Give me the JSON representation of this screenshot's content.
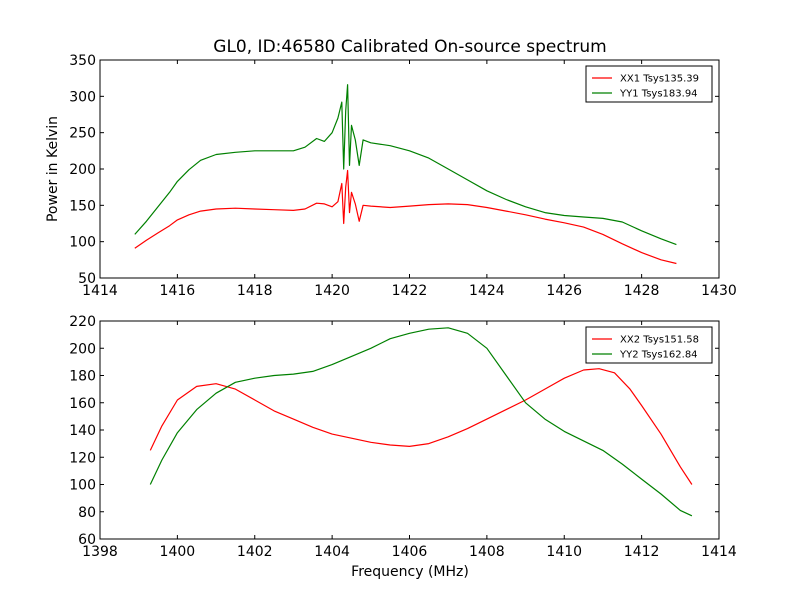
{
  "chart_data": [
    {
      "type": "line",
      "title": "GL0, ID:46580 Calibrated On-source spectrum",
      "xlabel": "",
      "ylabel": "Power in Kelvin",
      "xlim": [
        1414,
        1430
      ],
      "ylim": [
        50,
        350
      ],
      "xticks": [
        1414,
        1416,
        1418,
        1420,
        1422,
        1424,
        1426,
        1428,
        1430
      ],
      "yticks": [
        50,
        100,
        150,
        200,
        250,
        300,
        350
      ],
      "grid": false,
      "legend_position": "top-right",
      "series": [
        {
          "name": "XX1 Tsys135.39",
          "color": "#ff0000",
          "x": [
            1414.9,
            1415.2,
            1415.5,
            1415.8,
            1416.0,
            1416.3,
            1416.6,
            1417.0,
            1417.5,
            1418.0,
            1418.5,
            1419.0,
            1419.3,
            1419.6,
            1419.8,
            1420.0,
            1420.15,
            1420.25,
            1420.3,
            1420.35,
            1420.4,
            1420.45,
            1420.5,
            1420.6,
            1420.7,
            1420.8,
            1421.0,
            1421.5,
            1422.0,
            1422.5,
            1423.0,
            1423.5,
            1424.0,
            1424.5,
            1425.0,
            1425.5,
            1426.0,
            1426.5,
            1427.0,
            1427.5,
            1428.0,
            1428.5,
            1428.9
          ],
          "y": [
            91,
            102,
            112,
            122,
            130,
            137,
            142,
            145,
            146,
            145,
            144,
            143,
            145,
            153,
            152,
            148,
            155,
            180,
            125,
            175,
            198,
            140,
            168,
            152,
            128,
            150,
            149,
            147,
            149,
            151,
            152,
            151,
            147,
            142,
            137,
            131,
            126,
            120,
            110,
            97,
            85,
            75,
            70
          ]
        },
        {
          "name": "YY1 Tsys183.94",
          "color": "#008000",
          "x": [
            1414.9,
            1415.2,
            1415.5,
            1415.8,
            1416.0,
            1416.3,
            1416.6,
            1417.0,
            1417.5,
            1418.0,
            1418.5,
            1419.0,
            1419.3,
            1419.6,
            1419.8,
            1420.0,
            1420.15,
            1420.25,
            1420.3,
            1420.35,
            1420.4,
            1420.45,
            1420.5,
            1420.6,
            1420.7,
            1420.8,
            1421.0,
            1421.5,
            1422.0,
            1422.5,
            1423.0,
            1423.5,
            1424.0,
            1424.5,
            1425.0,
            1425.5,
            1426.0,
            1426.5,
            1427.0,
            1427.5,
            1428.0,
            1428.5,
            1428.9
          ],
          "y": [
            110,
            128,
            148,
            168,
            183,
            199,
            212,
            220,
            223,
            225,
            225,
            225,
            230,
            242,
            238,
            250,
            270,
            292,
            200,
            280,
            316,
            205,
            260,
            240,
            205,
            240,
            236,
            232,
            225,
            215,
            200,
            185,
            170,
            158,
            148,
            140,
            136,
            134,
            132,
            127,
            115,
            104,
            96
          ]
        }
      ]
    },
    {
      "type": "line",
      "title": "",
      "xlabel": "Frequency (MHz)",
      "ylabel": "",
      "xlim": [
        1398,
        1414
      ],
      "ylim": [
        60,
        220
      ],
      "xticks": [
        1398,
        1400,
        1402,
        1404,
        1406,
        1408,
        1410,
        1412,
        1414
      ],
      "yticks": [
        60,
        80,
        100,
        120,
        140,
        160,
        180,
        200,
        220
      ],
      "grid": false,
      "legend_position": "top-right",
      "series": [
        {
          "name": "XX2 Tsys151.58",
          "color": "#ff0000",
          "x": [
            1399.3,
            1399.6,
            1400.0,
            1400.5,
            1401.0,
            1401.5,
            1402.0,
            1402.5,
            1403.0,
            1403.5,
            1404.0,
            1404.5,
            1405.0,
            1405.5,
            1406.0,
            1406.5,
            1407.0,
            1407.5,
            1408.0,
            1408.5,
            1409.0,
            1409.5,
            1410.0,
            1410.5,
            1410.9,
            1411.3,
            1411.7,
            1412.0,
            1412.5,
            1413.0,
            1413.3
          ],
          "y": [
            125,
            143,
            162,
            172,
            174,
            170,
            162,
            154,
            148,
            142,
            137,
            134,
            131,
            129,
            128,
            130,
            135,
            141,
            148,
            155,
            162,
            170,
            178,
            184,
            185,
            182,
            170,
            158,
            137,
            113,
            100
          ]
        },
        {
          "name": "YY2 Tsys162.84",
          "color": "#008000",
          "x": [
            1399.3,
            1399.6,
            1400.0,
            1400.5,
            1401.0,
            1401.5,
            1402.0,
            1402.5,
            1403.0,
            1403.5,
            1404.0,
            1404.5,
            1405.0,
            1405.5,
            1406.0,
            1406.5,
            1407.0,
            1407.5,
            1408.0,
            1408.5,
            1409.0,
            1409.5,
            1410.0,
            1410.5,
            1411.0,
            1411.5,
            1412.0,
            1412.5,
            1413.0,
            1413.3
          ],
          "y": [
            100,
            118,
            138,
            155,
            167,
            175,
            178,
            180,
            181,
            183,
            188,
            194,
            200,
            207,
            211,
            214,
            215,
            211,
            200,
            180,
            160,
            148,
            139,
            132,
            125,
            115,
            104,
            93,
            81,
            77
          ]
        }
      ]
    }
  ]
}
